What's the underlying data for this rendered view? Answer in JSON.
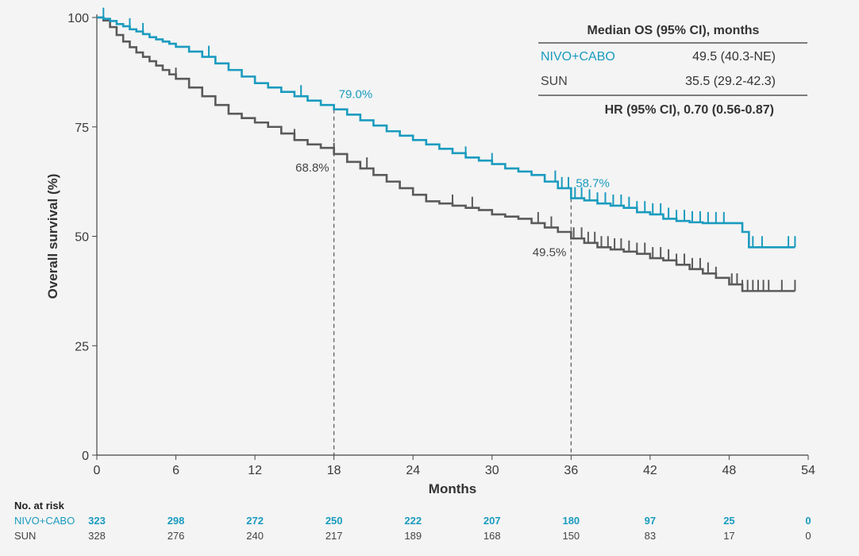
{
  "chart_data": {
    "type": "line",
    "subtype": "kaplan-meier",
    "xlabel": "Months",
    "ylabel": "Overall survival (%)",
    "xlim": [
      0,
      54
    ],
    "ylim": [
      0,
      100
    ],
    "xticks": [
      "0",
      "6",
      "12",
      "18",
      "24",
      "30",
      "36",
      "42",
      "48",
      "54"
    ],
    "yticks": [
      "0",
      "25",
      "50",
      "75",
      "100"
    ],
    "series": [
      {
        "name": "NIVO+CABO",
        "color": "#1a9bbf",
        "x": [
          0,
          0.5,
          1,
          1.5,
          2,
          2.5,
          3,
          3.5,
          4,
          4.5,
          5,
          5.5,
          6,
          7,
          8,
          9,
          10,
          11,
          12,
          13,
          14,
          15,
          16,
          17,
          18,
          19,
          20,
          21,
          22,
          23,
          24,
          25,
          26,
          27,
          28,
          29,
          30,
          31,
          32,
          33,
          34,
          35,
          36,
          37,
          38,
          39,
          40,
          41,
          42,
          43,
          44,
          45,
          46,
          47,
          48,
          49,
          49.5,
          50,
          51,
          52,
          53
        ],
        "y": [
          100,
          99.7,
          99.2,
          98.5,
          98,
          97.3,
          96.8,
          96.2,
          95.5,
          95,
          94.5,
          94,
          93.3,
          92.2,
          91,
          89.5,
          88,
          86.5,
          85,
          84,
          83,
          82,
          81,
          80,
          79,
          77.8,
          76.5,
          75.3,
          74,
          73,
          72,
          71,
          70,
          69,
          68,
          67.3,
          66.5,
          65.5,
          64.8,
          64,
          62.5,
          61,
          58.7,
          58.2,
          57.5,
          57,
          56.5,
          55.5,
          55,
          54,
          53.5,
          53.2,
          53,
          53,
          53,
          51,
          47.5,
          47.5,
          47.5,
          47.5,
          47.5
        ]
      },
      {
        "name": "SUN",
        "color": "#5a5a5a",
        "x": [
          0,
          0.5,
          1,
          1.5,
          2,
          2.5,
          3,
          3.5,
          4,
          4.5,
          5,
          5.5,
          6,
          7,
          8,
          9,
          10,
          11,
          12,
          13,
          14,
          15,
          16,
          17,
          18,
          19,
          20,
          21,
          22,
          23,
          24,
          25,
          26,
          27,
          28,
          29,
          30,
          31,
          32,
          33,
          34,
          35,
          36,
          37,
          38,
          39,
          40,
          41,
          42,
          43,
          44,
          45,
          46,
          47,
          48,
          49,
          50,
          51,
          52,
          53
        ],
        "y": [
          100,
          99.3,
          97.8,
          96,
          94.5,
          93.2,
          92,
          91,
          90,
          89,
          88,
          87,
          86,
          84,
          82,
          80,
          78,
          77,
          76,
          75,
          73.5,
          72,
          71,
          70.2,
          68.8,
          67,
          65.5,
          64,
          62.5,
          61,
          59.5,
          58,
          57.5,
          57,
          56.5,
          56,
          55,
          54.5,
          54,
          53,
          52,
          51,
          49.5,
          48.5,
          47.5,
          47,
          46.5,
          46,
          45,
          44.5,
          43.5,
          42.5,
          41.5,
          40.5,
          39,
          37.5,
          37.5,
          37.5,
          37.5,
          37.5
        ]
      }
    ],
    "censor_marks": {
      "NIVO+CABO": [
        0.5,
        2.5,
        3.5,
        8.5,
        15.5,
        28,
        30,
        34.8,
        35.3,
        35.8,
        36.3,
        36.8,
        37.4,
        38,
        38.6,
        39.2,
        39.8,
        40.4,
        41,
        41.6,
        42.2,
        42.8,
        43.4,
        44,
        44.6,
        45.2,
        45.8,
        46.4,
        47,
        47.6,
        49.8,
        50.5,
        52.5,
        53
      ],
      "SUN": [
        6,
        15,
        18,
        20.5,
        27,
        28.5,
        33.5,
        34.5,
        36.2,
        36.8,
        37.3,
        37.8,
        38.3,
        38.8,
        39.3,
        39.8,
        40.4,
        41,
        41.6,
        42.2,
        42.8,
        43.4,
        44,
        44.6,
        45.2,
        45.8,
        46.4,
        47,
        48.2,
        48.6,
        49,
        49.4,
        49.8,
        50.2,
        50.6,
        51,
        52,
        53
      ]
    },
    "reference_lines": [
      {
        "x": 18,
        "annotations": [
          {
            "series": "NIVO+CABO",
            "label": "79.0%",
            "y": 79
          },
          {
            "series": "SUN",
            "label": "68.8%",
            "y": 68.8
          }
        ]
      },
      {
        "x": 36,
        "annotations": [
          {
            "series": "NIVO+CABO",
            "label": "58.7%",
            "y": 58.7
          },
          {
            "series": "SUN",
            "label": "49.5%",
            "y": 49.5
          }
        ]
      }
    ]
  },
  "summary_table": {
    "header": "Median OS (95% CI), months",
    "rows": [
      {
        "arm": "NIVO+CABO",
        "value": "49.5 (40.3-NE)",
        "color": "#1a9bbf"
      },
      {
        "arm": "SUN",
        "value": "35.5 (29.2-42.3)",
        "color": "#444444"
      }
    ],
    "footer": "HR (95% CI), 0.70 (0.56-0.87)"
  },
  "at_risk": {
    "title": "No. at risk",
    "rows": [
      {
        "arm": "NIVO+CABO",
        "color": "#1a9bbf",
        "values": [
          "323",
          "298",
          "272",
          "250",
          "222",
          "207",
          "180",
          "97",
          "25",
          "0"
        ]
      },
      {
        "arm": "SUN",
        "color": "#444444",
        "values": [
          "328",
          "276",
          "240",
          "217",
          "189",
          "168",
          "150",
          "83",
          "17",
          "0"
        ]
      }
    ]
  }
}
